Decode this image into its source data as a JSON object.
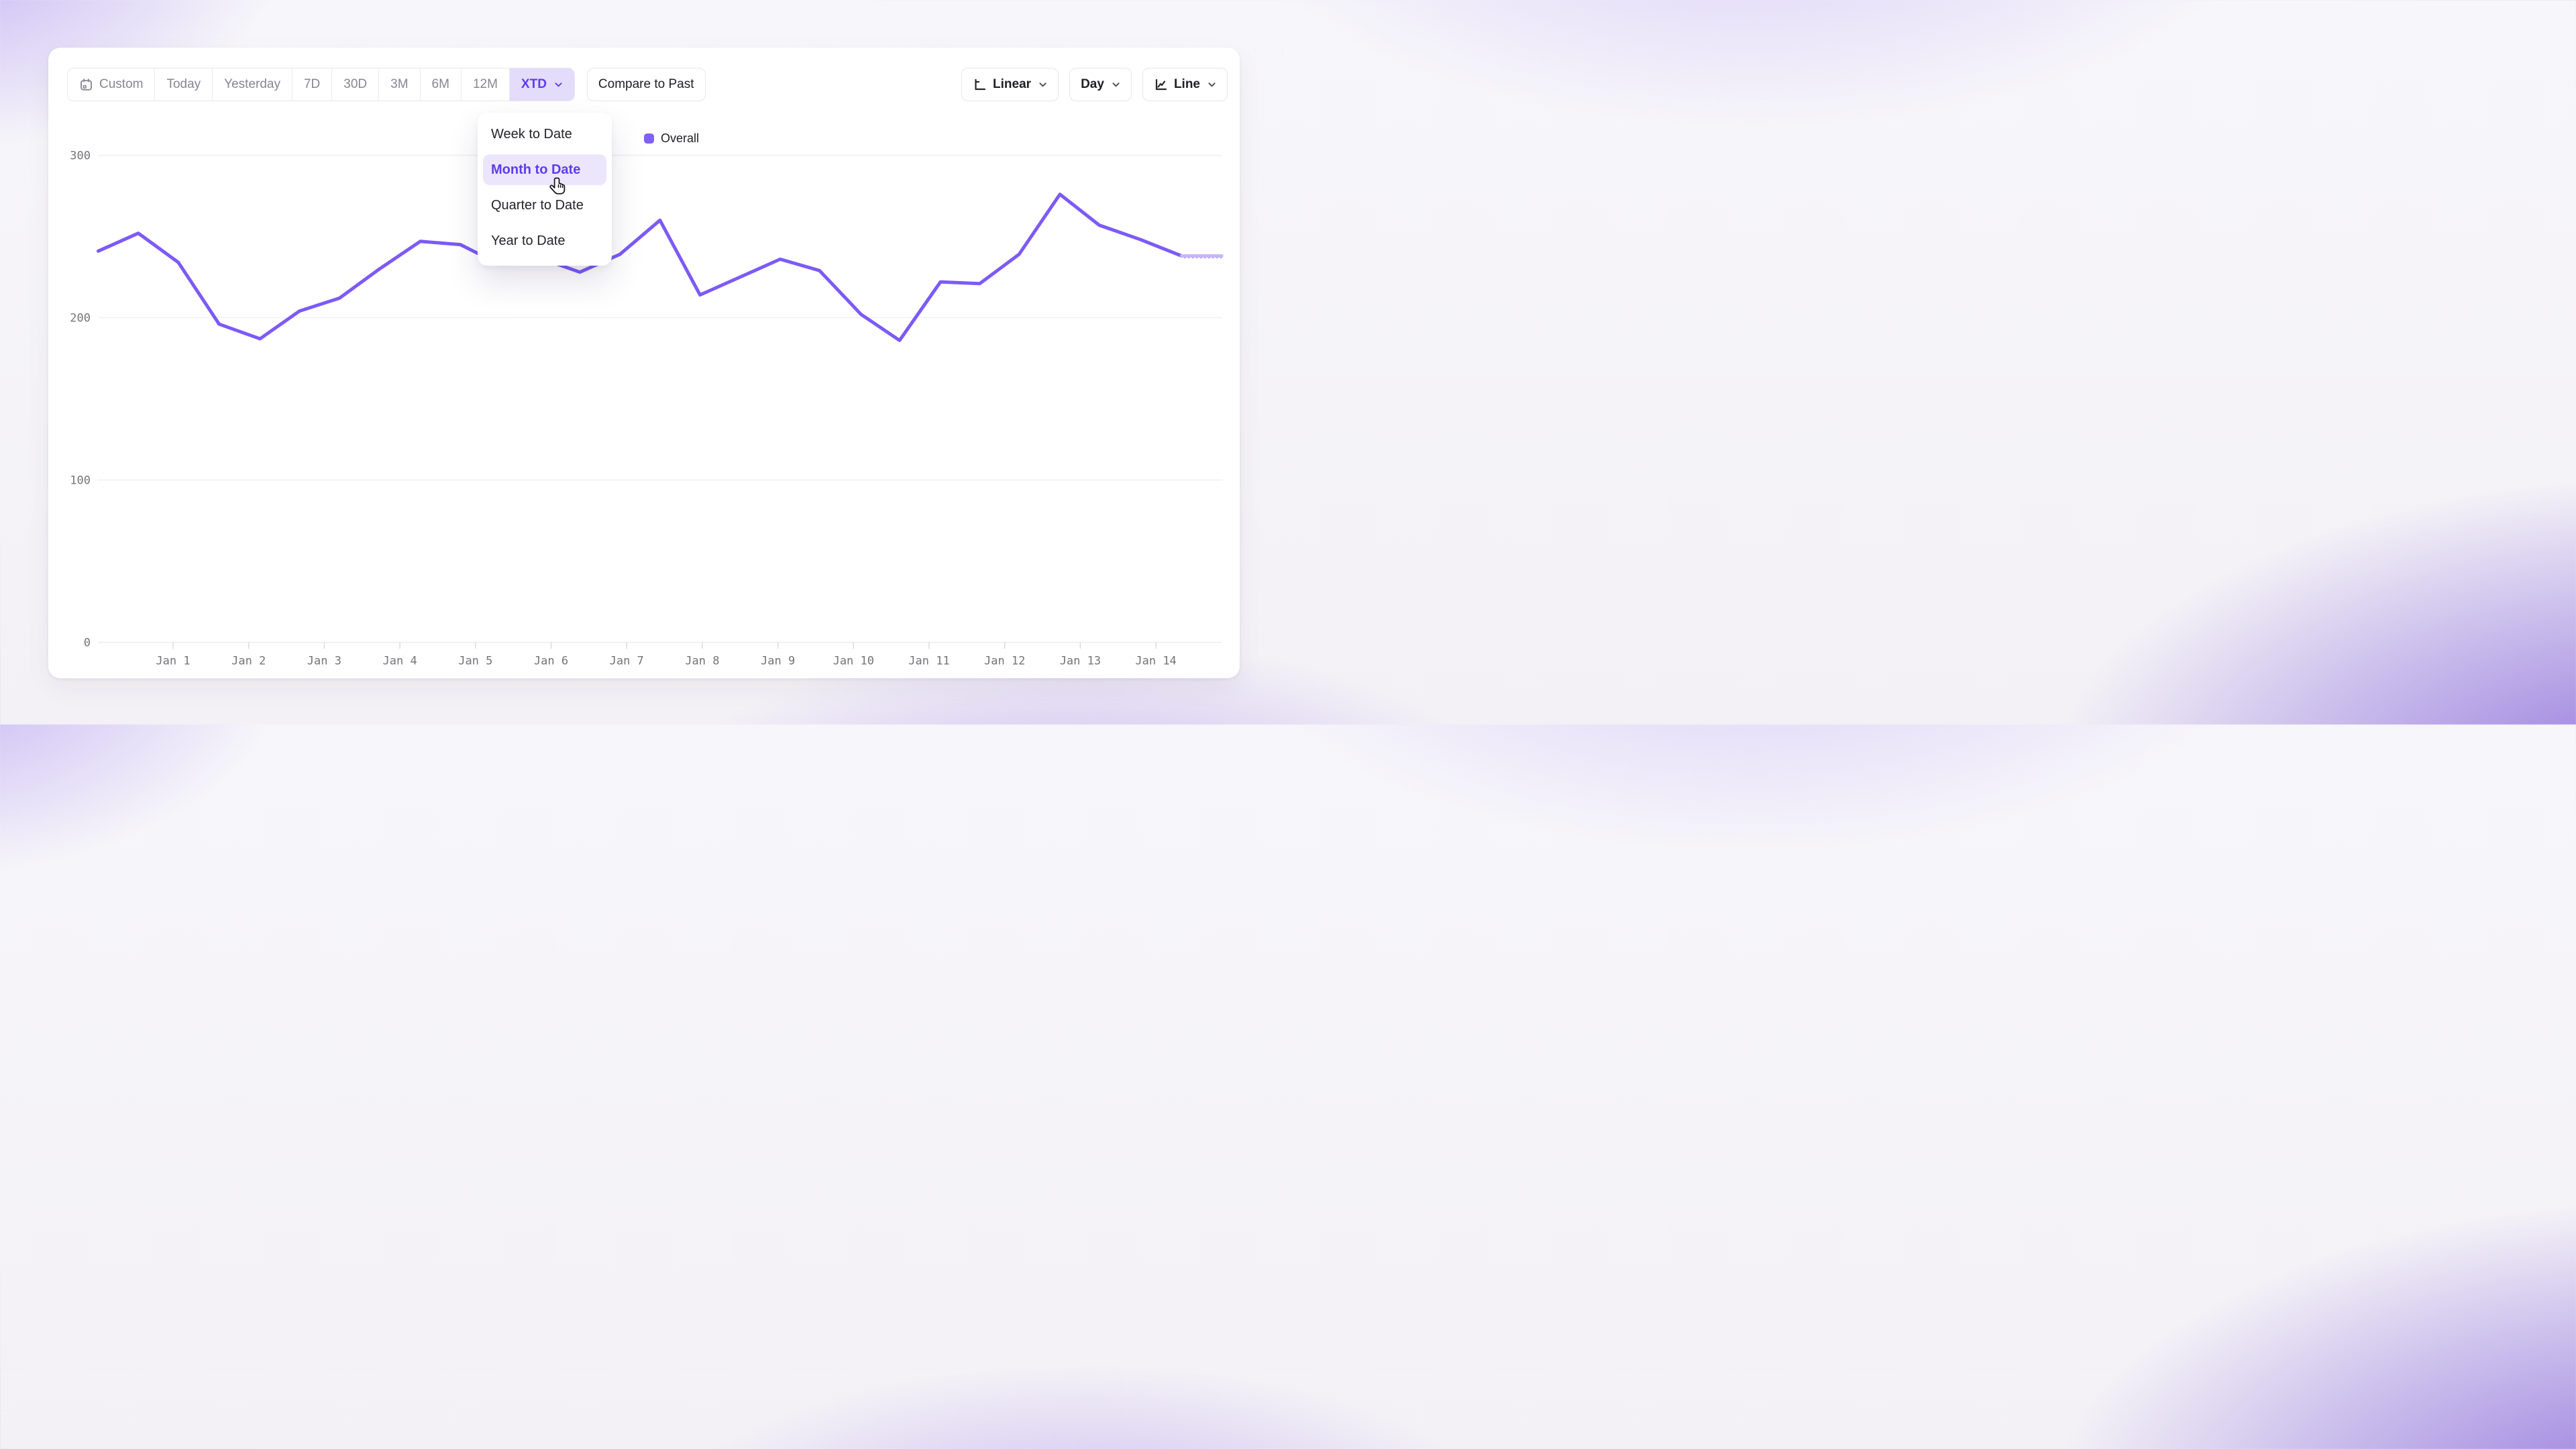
{
  "toolbar": {
    "ranges": [
      {
        "label": "Custom",
        "icon": "calendar-icon",
        "selected": false
      },
      {
        "label": "Today",
        "selected": false
      },
      {
        "label": "Yesterday",
        "selected": false
      },
      {
        "label": "7D",
        "selected": false
      },
      {
        "label": "30D",
        "selected": false
      },
      {
        "label": "3M",
        "selected": false
      },
      {
        "label": "6M",
        "selected": false
      },
      {
        "label": "12M",
        "selected": false
      },
      {
        "label": "XTD",
        "selected": true,
        "has_chevron": true
      }
    ],
    "compare_label": "Compare to Past",
    "scale_button": {
      "label": "Linear",
      "icon": "axis-icon",
      "has_chevron": true
    },
    "granularity_button": {
      "label": "Day",
      "has_chevron": true
    },
    "chart_type_button": {
      "label": "Line",
      "icon": "line-chart-icon",
      "has_chevron": true
    }
  },
  "dropdown": {
    "items": [
      {
        "label": "Week to Date",
        "highlighted": false
      },
      {
        "label": "Month to Date",
        "highlighted": true
      },
      {
        "label": "Quarter to Date",
        "highlighted": false
      },
      {
        "label": "Year to Date",
        "highlighted": false
      }
    ]
  },
  "legend": {
    "label": "Overall"
  },
  "chart_data": {
    "type": "line",
    "title": "",
    "xlabel": "",
    "ylabel": "",
    "x_tick_labels": [
      "Jan 1",
      "Jan 2",
      "Jan 3",
      "Jan 4",
      "Jan 5",
      "Jan 6",
      "Jan 7",
      "Jan 8",
      "Jan 9",
      "Jan 10",
      "Jan 11",
      "Jan 12",
      "Jan 13",
      "Jan 14"
    ],
    "y_ticks": [
      0,
      100,
      200,
      300
    ],
    "ylim": [
      0,
      310
    ],
    "grid": "horizontal",
    "legend_position": "top-center",
    "series": [
      {
        "name": "Overall",
        "points": [
          {
            "day": 0.01,
            "value": 241
          },
          {
            "day": 0.54,
            "value": 252
          },
          {
            "day": 1.07,
            "value": 234
          },
          {
            "day": 1.61,
            "value": 196
          },
          {
            "day": 2.15,
            "value": 187
          },
          {
            "day": 2.67,
            "value": 204
          },
          {
            "day": 3.2,
            "value": 212
          },
          {
            "day": 3.73,
            "value": 230
          },
          {
            "day": 4.27,
            "value": 247
          },
          {
            "day": 4.8,
            "value": 245
          },
          {
            "day": 5.31,
            "value": 233
          },
          {
            "day": 5.84,
            "value": 237
          },
          {
            "day": 6.38,
            "value": 228
          },
          {
            "day": 6.91,
            "value": 239
          },
          {
            "day": 7.44,
            "value": 260
          },
          {
            "day": 7.97,
            "value": 214
          },
          {
            "day": 8.5,
            "value": 225
          },
          {
            "day": 9.03,
            "value": 236
          },
          {
            "day": 9.55,
            "value": 229
          },
          {
            "day": 10.1,
            "value": 202
          },
          {
            "day": 10.61,
            "value": 186
          },
          {
            "day": 11.15,
            "value": 222
          },
          {
            "day": 11.67,
            "value": 221
          },
          {
            "day": 12.19,
            "value": 239
          },
          {
            "day": 12.73,
            "value": 276
          },
          {
            "day": 13.25,
            "value": 257
          },
          {
            "day": 13.8,
            "value": 248
          },
          {
            "day": 14.34,
            "value": 238
          }
        ]
      }
    ],
    "projection_tail": {
      "from_day": 14.34,
      "to_day": 14.87,
      "value": 238,
      "style": "light"
    }
  },
  "colors": {
    "accent": "#5d3bef",
    "accent_bg": "#e3dcfb",
    "highlight_bg": "#ece6fc",
    "line": "#7c5af8",
    "line_tail": "#c7b5fb",
    "legend_swatch": "#8160f7",
    "gridline": "#f0eff2",
    "axis_line": "#ecebee",
    "tick": "#d8d7dc",
    "axis_text": "#74747b"
  }
}
